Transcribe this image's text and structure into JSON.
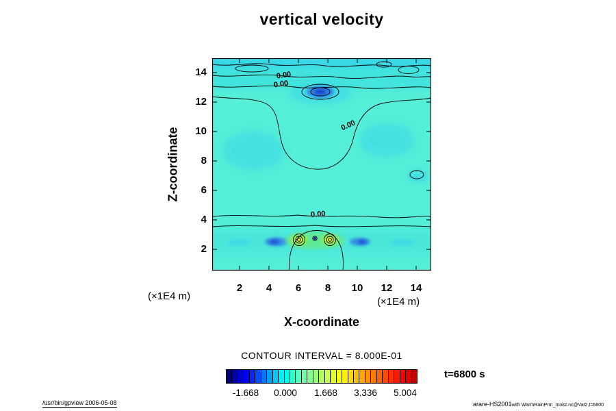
{
  "title": "vertical velocity",
  "axes": {
    "x_label": "X-coordinate",
    "y_label": "Z-coordinate",
    "x_ticks": [
      "2",
      "4",
      "6",
      "8",
      "10",
      "12",
      "14"
    ],
    "y_ticks": [
      "14",
      "12",
      "10",
      "8",
      "6",
      "4",
      "2"
    ],
    "x_unit_left": "(×1E4 m)",
    "x_unit_right": "(×1E4 m)"
  },
  "contour": {
    "interval_text": "CONTOUR INTERVAL = 8.000E-01",
    "zero_label": "0.00"
  },
  "colorbar": {
    "tick_labels": [
      "-1.668",
      "0.000",
      "1.668",
      "3.336",
      "5.004"
    ],
    "segments": [
      "#000080",
      "#0000A8",
      "#0000D0",
      "#0000F8",
      "#0028FF",
      "#0050FF",
      "#0078FF",
      "#00A0FF",
      "#00C8FF",
      "#00F0FF",
      "#00FFE8",
      "#30FFD0",
      "#50FFC0",
      "#68FFA8",
      "#80FF90",
      "#98FF78",
      "#B0FF60",
      "#C8FF48",
      "#E0FF30",
      "#F8FF18",
      "#FFF000",
      "#FFD800",
      "#FFC000",
      "#FFA800",
      "#FF9000",
      "#FF7800",
      "#FF6000",
      "#FF4800",
      "#FF3000",
      "#FF1800",
      "#FF0000",
      "#E00000",
      "#C00000"
    ]
  },
  "annotations": {
    "time_label": "t=6800 s"
  },
  "footer": {
    "left": "/usr/bin/gpview 2006-05-08",
    "right_main": "arare-HS2001",
    "right_sub": "with WarmRainPrm_moist.nc@Vat2,t=6800"
  },
  "plot_colors": {
    "base": "#55EED8",
    "band": "#41E2DE",
    "patch": "#36D4EA",
    "blue": "#2E78E8",
    "deepblue": "#1837C8",
    "green": "#62E88E",
    "green2": "#9CEE50",
    "core": "#DCF238",
    "darkdot": "#202CA0"
  },
  "chart_data": {
    "type": "heatmap",
    "variant": "filled_contour_2d",
    "title": "vertical velocity",
    "xlabel": "X-coordinate (×1E4 m)",
    "ylabel": "Z-coordinate (×1E4 m)",
    "xlim": [
      0,
      15
    ],
    "ylim": [
      0,
      15
    ],
    "xticks": [
      2,
      4,
      6,
      8,
      10,
      12,
      14
    ],
    "yticks": [
      2,
      4,
      6,
      8,
      10,
      12,
      14
    ],
    "contour_interval": 0.8,
    "colorbar_ticks": [
      -1.668,
      0.0,
      1.668,
      3.336,
      5.004
    ],
    "colorbar_range_approx": [
      -2.5,
      5.5
    ],
    "time_seconds": 6800,
    "labeled_contours": [
      {
        "level": 0.0,
        "x": 4.9,
        "z": 13.6
      },
      {
        "level": 0.0,
        "x": 4.8,
        "z": 13.1
      },
      {
        "level": 0.0,
        "x": 9.3,
        "z": 10.4
      },
      {
        "level": 0.0,
        "x": 7.2,
        "z": 4.3
      }
    ],
    "features": [
      {
        "name": "updraft-core",
        "x": 6.3,
        "z": 2.6,
        "w_approx": 5.0
      },
      {
        "name": "updraft-core",
        "x": 7.9,
        "z": 2.6,
        "w_approx": 5.0
      },
      {
        "name": "downdraft",
        "x": 4.5,
        "z": 2.5,
        "w_approx": -1.7
      },
      {
        "name": "downdraft",
        "x": 10.1,
        "z": 2.5,
        "w_approx": -1.7
      },
      {
        "name": "downdraft",
        "x": 7.4,
        "z": 12.7,
        "w_approx": -1.7
      },
      {
        "name": "background-field",
        "w_approx": 0.3
      }
    ]
  }
}
